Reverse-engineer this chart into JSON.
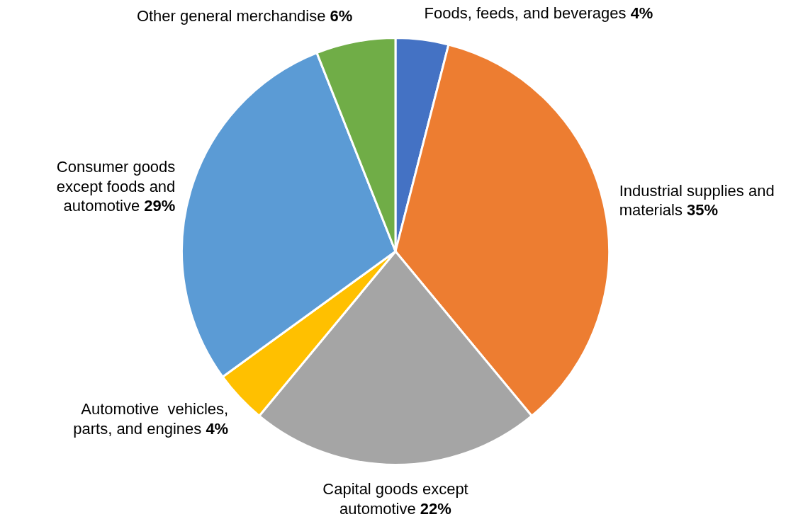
{
  "chart_data": {
    "type": "pie",
    "categories": [
      "Foods, feeds, and beverages",
      "Industrial supplies and materials",
      "Capital goods except automotive",
      "Automotive  vehicles, parts, and engines",
      "Consumer goods except foods and automotive",
      "Other general merchandise"
    ],
    "values": [
      4,
      35,
      22,
      4,
      29,
      6
    ],
    "value_labels": [
      "4%",
      "35%",
      "22%",
      "4%",
      "29%",
      "6%"
    ],
    "colors": [
      "#4472c4",
      "#ed7d31",
      "#a5a5a5",
      "#ffc000",
      "#5b9bd5",
      "#70ad47"
    ],
    "legend": false
  }
}
